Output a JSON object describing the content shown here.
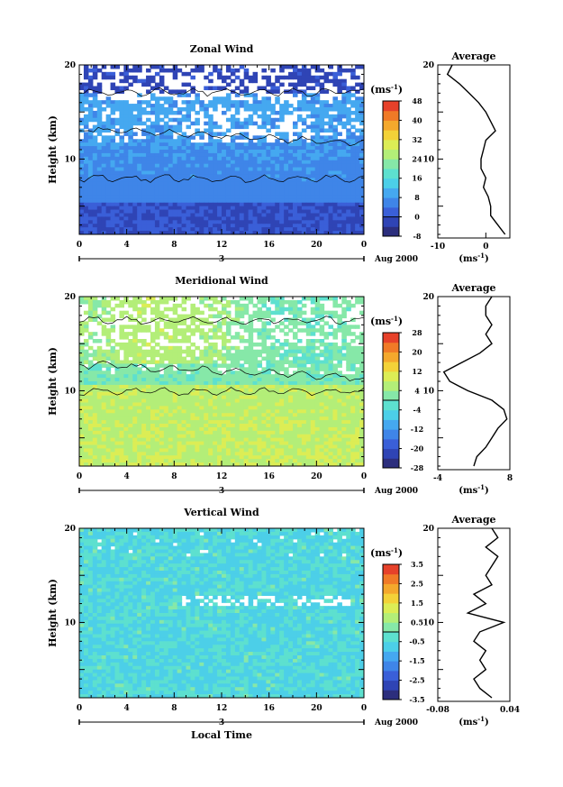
{
  "figure": {
    "xlabel": "Local Time",
    "date_label": "Aug 2000",
    "unit_label": "(ms",
    "unit_sup": "-1",
    "average_title": "Average"
  },
  "chart_data": [
    {
      "type": "heatmap",
      "title": "Zonal Wind",
      "ylabel": "Height (km)",
      "xlabel": "",
      "xlim": [
        0,
        24
      ],
      "ylim": [
        2,
        20
      ],
      "xticks": [
        "0",
        "4",
        "8",
        "12",
        "16",
        "20",
        "0"
      ],
      "yticks": [
        "10",
        "20"
      ],
      "day_label": "3",
      "colorbar": {
        "min": -8,
        "max": 48,
        "ticks": [
          "-8",
          "0",
          "8",
          "16",
          "24",
          "32",
          "40",
          "48"
        ]
      },
      "profile": {
        "title": "Average",
        "xlim": [
          -10,
          5
        ],
        "xticks": [
          "-10",
          "0"
        ],
        "xlabel": "(ms",
        "heights": [
          2,
          3,
          4,
          5,
          6,
          7,
          8,
          9,
          10,
          11,
          12,
          13,
          14,
          15,
          16,
          17,
          18,
          19,
          20
        ],
        "values": [
          4,
          2.5,
          1,
          1,
          0.5,
          -0.5,
          0,
          -1,
          -1,
          -0.5,
          0,
          2,
          1,
          0,
          -1.5,
          -3.5,
          -5.5,
          -8,
          -7
        ]
      }
    },
    {
      "type": "heatmap",
      "title": "Meridional Wind",
      "ylabel": "Height (km)",
      "xlabel": "",
      "xlim": [
        0,
        24
      ],
      "ylim": [
        2,
        20
      ],
      "xticks": [
        "0",
        "4",
        "8",
        "12",
        "16",
        "20",
        "0"
      ],
      "yticks": [
        "10",
        "20"
      ],
      "day_label": "3",
      "colorbar": {
        "min": -28,
        "max": 28,
        "ticks": [
          "-28",
          "-20",
          "-12",
          "-4",
          "4",
          "12",
          "20",
          "28"
        ]
      },
      "profile": {
        "title": "Average",
        "xlim": [
          -4,
          8
        ],
        "xticks": [
          "-4",
          "8"
        ],
        "xlabel": "(ms",
        "heights": [
          2,
          3,
          4,
          5,
          6,
          7,
          8,
          9,
          10,
          11,
          12,
          13,
          14,
          15,
          16,
          17,
          18,
          19,
          20
        ],
        "values": [
          2,
          2.5,
          4,
          5,
          6,
          7.5,
          7,
          5,
          1,
          -2,
          -3,
          0,
          3,
          5,
          4,
          5,
          4,
          4,
          5
        ]
      }
    },
    {
      "type": "heatmap",
      "title": "Vertical Wind",
      "ylabel": "Height (km)",
      "xlabel": "Local Time",
      "xlim": [
        0,
        24
      ],
      "ylim": [
        2,
        20
      ],
      "xticks": [
        "0",
        "4",
        "8",
        "12",
        "16",
        "20",
        "0"
      ],
      "yticks": [
        "10",
        "20"
      ],
      "day_label": "3",
      "colorbar": {
        "min": -3.5,
        "max": 3.5,
        "ticks": [
          "-3.5",
          "-2.5",
          "-1.5",
          "-0.5",
          "0.5",
          "1.5",
          "2.5",
          "3.5"
        ]
      },
      "profile": {
        "title": "Average",
        "xlim": [
          -0.08,
          0.04
        ],
        "xticks": [
          "-0.08",
          "0.04"
        ],
        "xlabel": "(ms",
        "heights": [
          2,
          3,
          4,
          5,
          6,
          7,
          8,
          9,
          10,
          11,
          12,
          13,
          14,
          15,
          16,
          17,
          18,
          19,
          20
        ],
        "values": [
          0.01,
          -0.01,
          -0.02,
          0,
          -0.01,
          0,
          -0.02,
          -0.01,
          0.03,
          -0.03,
          0,
          -0.02,
          0.01,
          0,
          0.01,
          0.02,
          0,
          0.02,
          0.01
        ]
      }
    }
  ]
}
